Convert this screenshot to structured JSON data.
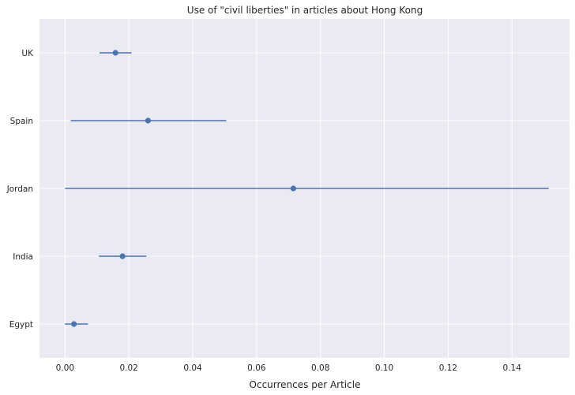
{
  "chart_data": {
    "type": "scatter",
    "title": "Use of \"civil liberties\" in articles about Hong Kong",
    "xlabel": "Occurrences per Article",
    "ylabel": "",
    "xlim": [
      -0.008,
      0.158
    ],
    "xticks": [
      "0.00",
      "0.02",
      "0.04",
      "0.06",
      "0.08",
      "0.10",
      "0.12",
      "0.14"
    ],
    "xtick_values": [
      0,
      0.02,
      0.04,
      0.06,
      0.08,
      0.1,
      0.12,
      0.14
    ],
    "categories": [
      "UK",
      "Spain",
      "Jordan",
      "India",
      "Egypt"
    ],
    "series": [
      {
        "values": [
          0.0158,
          0.026,
          0.0715,
          0.018,
          0.0028
        ],
        "lower": [
          0.0108,
          0.0018,
          0.0,
          0.0106,
          0.0
        ],
        "upper": [
          0.0208,
          0.0505,
          0.1515,
          0.0255,
          0.0072
        ]
      }
    ],
    "grid": true,
    "background_color": "#EAEAF2",
    "marker_color": "#4C72B0"
  }
}
